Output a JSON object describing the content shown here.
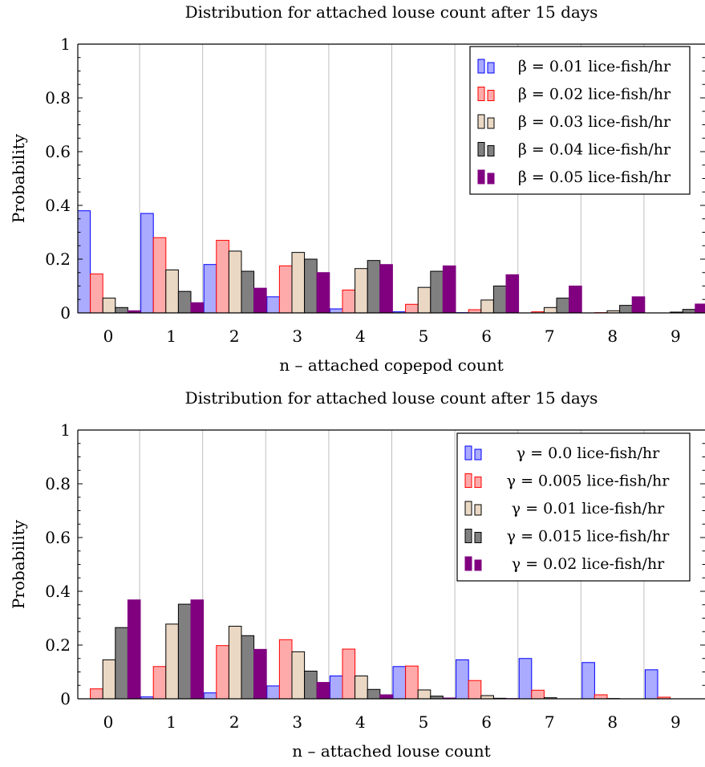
{
  "chart_data": [
    {
      "type": "bar",
      "title": "Distribution for attached louse count after 15 days",
      "xlabel": "n – attached copepod count",
      "ylabel": "Probability",
      "categories": [
        "0",
        "1",
        "2",
        "3",
        "4",
        "5",
        "6",
        "7",
        "8",
        "9"
      ],
      "ylim": [
        0,
        1
      ],
      "yticks": [
        "0",
        "0.2",
        "0.4",
        "0.6",
        "0.8",
        "1"
      ],
      "grid": "vertical",
      "legend_position": "top-right",
      "series": [
        {
          "name": "β = 0.01 lice-fish/hr",
          "color": "#aaaaff",
          "stroke": "#0000ff",
          "values": [
            0.38,
            0.37,
            0.18,
            0.06,
            0.015,
            0.004,
            0.001,
            0.0,
            0.0,
            0.0
          ]
        },
        {
          "name": "β = 0.02 lice-fish/hr",
          "color": "#ffaaaa",
          "stroke": "#ff0000",
          "values": [
            0.145,
            0.28,
            0.27,
            0.175,
            0.085,
            0.032,
            0.012,
            0.004,
            0.001,
            0.0
          ]
        },
        {
          "name": "β = 0.03 lice-fish/hr",
          "color": "#ead8c4",
          "stroke": "#000000",
          "values": [
            0.055,
            0.16,
            0.23,
            0.225,
            0.165,
            0.095,
            0.048,
            0.02,
            0.008,
            0.003
          ]
        },
        {
          "name": "β = 0.04 lice-fish/hr",
          "color": "#808080",
          "stroke": "#000000",
          "values": [
            0.02,
            0.08,
            0.155,
            0.2,
            0.195,
            0.155,
            0.1,
            0.055,
            0.028,
            0.013
          ]
        },
        {
          "name": "β = 0.05 lice-fish/hr",
          "color": "#800080",
          "stroke": "#800080",
          "values": [
            0.008,
            0.038,
            0.092,
            0.15,
            0.18,
            0.175,
            0.142,
            0.1,
            0.06,
            0.033
          ]
        }
      ]
    },
    {
      "type": "bar",
      "title": "Distribution for attached louse count after 15 days",
      "xlabel": "n – attached louse count",
      "ylabel": "Probability",
      "categories": [
        "0",
        "1",
        "2",
        "3",
        "4",
        "5",
        "6",
        "7",
        "8",
        "9"
      ],
      "ylim": [
        0,
        1
      ],
      "yticks": [
        "0",
        "0.2",
        "0.4",
        "0.6",
        "0.8",
        "1"
      ],
      "grid": "vertical",
      "legend_position": "top-right",
      "series": [
        {
          "name": "γ = 0.0 lice-fish/hr",
          "color": "#aaaaff",
          "stroke": "#0000ff",
          "values": [
            0.0,
            0.007,
            0.022,
            0.048,
            0.085,
            0.12,
            0.145,
            0.15,
            0.135,
            0.108
          ]
        },
        {
          "name": "γ = 0.005 lice-fish/hr",
          "color": "#ffaaaa",
          "stroke": "#ff0000",
          "values": [
            0.037,
            0.12,
            0.198,
            0.22,
            0.185,
            0.122,
            0.068,
            0.032,
            0.015,
            0.006
          ]
        },
        {
          "name": "γ = 0.01 lice-fish/hr",
          "color": "#ead8c4",
          "stroke": "#000000",
          "values": [
            0.145,
            0.278,
            0.27,
            0.175,
            0.085,
            0.033,
            0.012,
            0.004,
            0.001,
            0.0
          ]
        },
        {
          "name": "γ = 0.015 lice-fish/hr",
          "color": "#808080",
          "stroke": "#000000",
          "values": [
            0.265,
            0.352,
            0.235,
            0.103,
            0.035,
            0.01,
            0.002,
            0.0,
            0.0,
            0.0
          ]
        },
        {
          "name": "γ = 0.02 lice-fish/hr",
          "color": "#800080",
          "stroke": "#800080",
          "values": [
            0.368,
            0.368,
            0.184,
            0.061,
            0.015,
            0.003,
            0.001,
            0.0,
            0.0,
            0.0
          ]
        }
      ]
    }
  ]
}
